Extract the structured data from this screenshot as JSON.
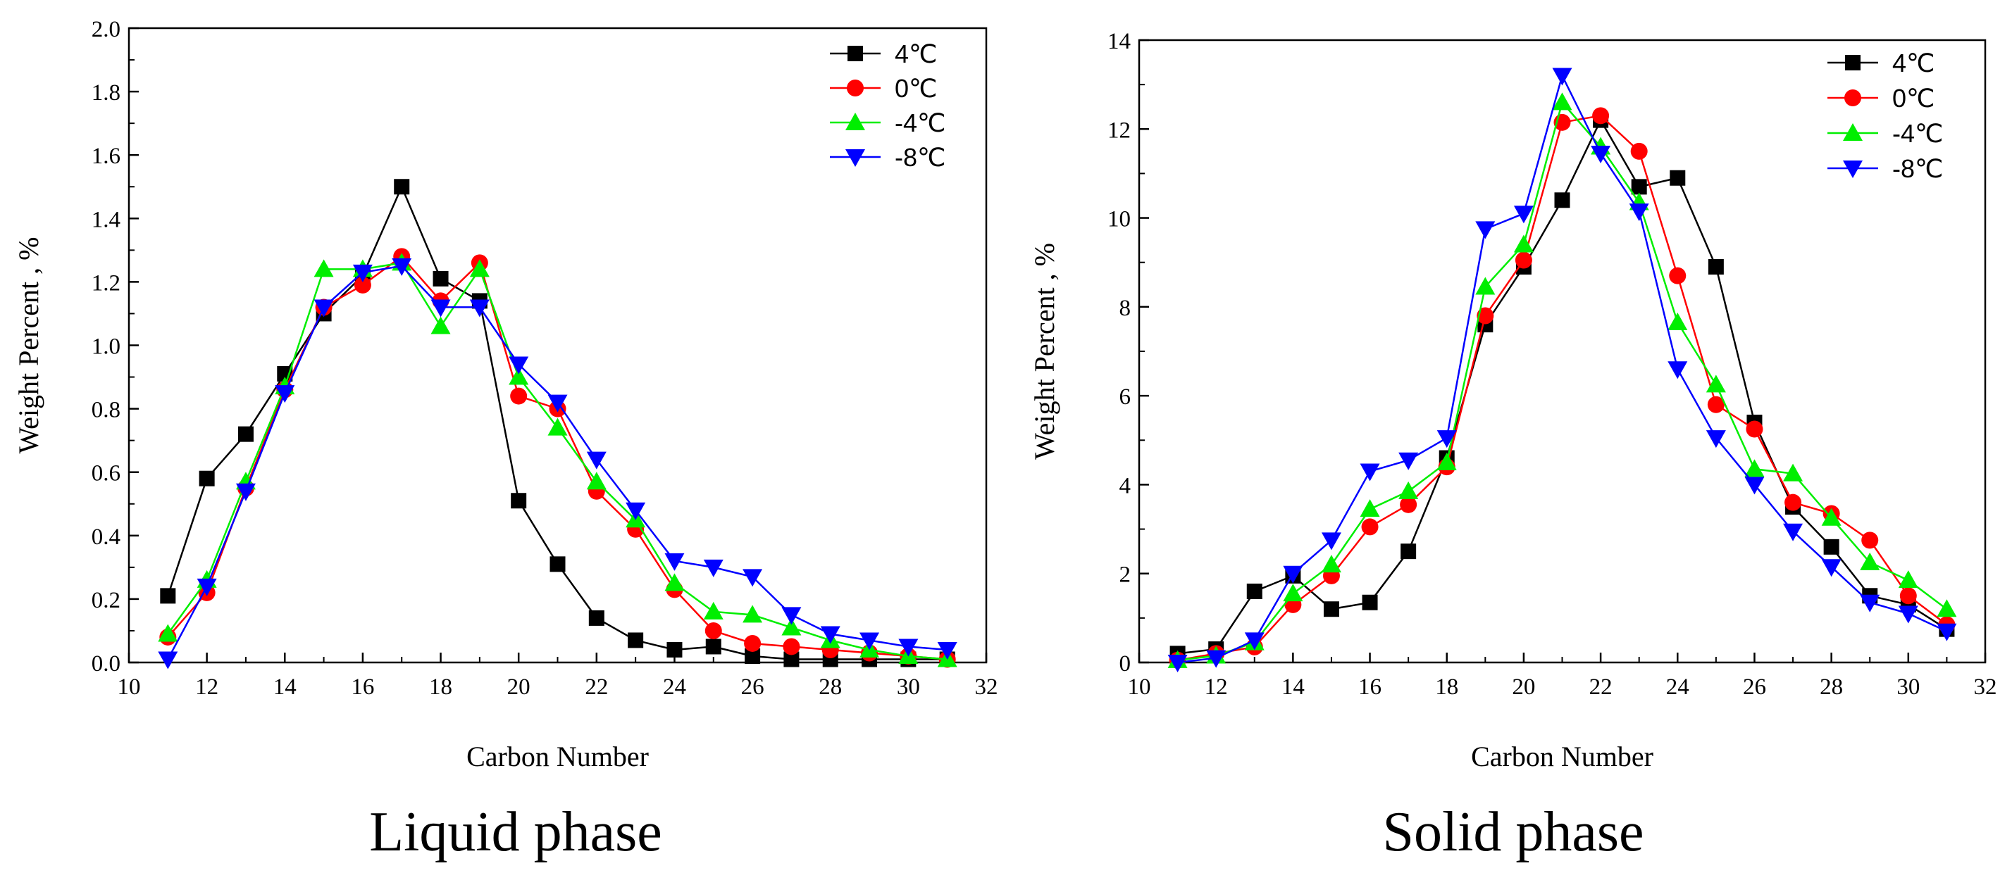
{
  "figure": {
    "panels": [
      {
        "caption": "Liquid phase"
      },
      {
        "caption": "Solid phase"
      }
    ]
  },
  "chart_data": [
    {
      "type": "line",
      "title": "Liquid phase",
      "xlabel": "Carbon Number",
      "ylabel": "Weight Percent , %",
      "xlim": [
        10,
        32
      ],
      "ylim": [
        0,
        2.0
      ],
      "xticks": [
        10,
        12,
        14,
        16,
        18,
        20,
        22,
        24,
        26,
        28,
        30,
        32
      ],
      "xtick_labels": [
        "10",
        "12",
        "14",
        "16",
        "18",
        "20",
        "22",
        "24",
        "26",
        "28",
        "30",
        "32"
      ],
      "yticks": [
        0,
        0.2,
        0.4,
        0.6,
        0.8,
        1.0,
        1.2,
        1.4,
        1.6,
        1.8,
        2.0
      ],
      "ytick_labels": [
        "0.0",
        "0.2",
        "0.4",
        "0.6",
        "0.8",
        "1.0",
        "1.2",
        "1.4",
        "1.6",
        "1.8",
        "2.0"
      ],
      "grid": false,
      "legend_position": "top-right",
      "x": [
        11,
        12,
        13,
        14,
        15,
        16,
        17,
        18,
        19,
        20,
        21,
        22,
        23,
        24,
        25,
        26,
        27,
        28,
        29,
        30,
        31
      ],
      "series": [
        {
          "name": "4℃",
          "color": "#000000",
          "marker": "square",
          "values": [
            0.21,
            0.58,
            0.72,
            0.91,
            1.1,
            1.22,
            1.5,
            1.21,
            1.14,
            0.51,
            0.31,
            0.14,
            0.07,
            0.04,
            0.05,
            0.02,
            0.01,
            0.01,
            0.01,
            0.01,
            0.01
          ]
        },
        {
          "name": "0℃",
          "color": "#ff0000",
          "marker": "circle",
          "values": [
            0.08,
            0.22,
            0.55,
            0.86,
            1.12,
            1.19,
            1.28,
            1.14,
            1.26,
            0.84,
            0.8,
            0.54,
            0.42,
            0.23,
            0.1,
            0.06,
            0.05,
            0.04,
            0.03,
            0.02,
            0.01
          ]
        },
        {
          "name": "-4℃",
          "color": "#00ee00",
          "marker": "triangle-up",
          "values": [
            0.09,
            0.26,
            0.57,
            0.87,
            1.24,
            1.24,
            1.26,
            1.06,
            1.24,
            0.9,
            0.74,
            0.57,
            0.45,
            0.25,
            0.16,
            0.15,
            0.11,
            0.07,
            0.04,
            0.02,
            0.01
          ]
        },
        {
          "name": "-8℃",
          "color": "#0000ff",
          "marker": "triangle-down",
          "values": [
            0.01,
            0.24,
            0.54,
            0.85,
            1.12,
            1.23,
            1.25,
            1.12,
            1.12,
            0.94,
            0.82,
            0.64,
            0.48,
            0.32,
            0.3,
            0.27,
            0.15,
            0.09,
            0.07,
            0.05,
            0.04
          ]
        }
      ]
    },
    {
      "type": "line",
      "title": "Solid phase",
      "xlabel": "Carbon Number",
      "ylabel": "Weight Percent , %",
      "xlim": [
        10,
        32
      ],
      "ylim": [
        0,
        14
      ],
      "xticks": [
        10,
        12,
        14,
        16,
        18,
        20,
        22,
        24,
        26,
        28,
        30,
        32
      ],
      "xtick_labels": [
        "10",
        "12",
        "14",
        "16",
        "18",
        "20",
        "22",
        "24",
        "26",
        "28",
        "30",
        "32"
      ],
      "yticks": [
        0,
        2,
        4,
        6,
        8,
        10,
        12,
        14
      ],
      "ytick_labels": [
        "0",
        "2",
        "4",
        "6",
        "8",
        "10",
        "12",
        "14"
      ],
      "grid": false,
      "legend_position": "top-right",
      "x": [
        11,
        12,
        13,
        14,
        15,
        16,
        17,
        18,
        19,
        20,
        21,
        22,
        23,
        24,
        25,
        26,
        27,
        28,
        29,
        30,
        31
      ],
      "series": [
        {
          "name": "4℃",
          "color": "#000000",
          "marker": "square",
          "values": [
            0.2,
            0.3,
            1.6,
            1.95,
            1.2,
            1.35,
            2.5,
            4.6,
            7.6,
            8.9,
            10.4,
            12.2,
            10.7,
            10.9,
            8.9,
            5.4,
            3.5,
            2.6,
            1.5,
            1.3,
            0.75
          ]
        },
        {
          "name": "0℃",
          "color": "#ff0000",
          "marker": "circle",
          "values": [
            0.05,
            0.2,
            0.35,
            1.3,
            1.95,
            3.05,
            3.55,
            4.4,
            7.8,
            9.05,
            12.15,
            12.3,
            11.5,
            8.7,
            5.8,
            5.25,
            3.6,
            3.35,
            2.75,
            1.5,
            0.85
          ]
        },
        {
          "name": "-4℃",
          "color": "#00ee00",
          "marker": "triangle-up",
          "values": [
            0.05,
            0.15,
            0.45,
            1.55,
            2.2,
            3.45,
            3.85,
            4.5,
            8.45,
            9.4,
            12.6,
            11.6,
            10.35,
            7.65,
            6.25,
            4.35,
            4.25,
            3.25,
            2.25,
            1.85,
            1.2
          ]
        },
        {
          "name": "-8℃",
          "color": "#0000ff",
          "marker": "triangle-down",
          "values": [
            0.0,
            0.1,
            0.5,
            2.0,
            2.75,
            4.3,
            4.55,
            5.05,
            9.75,
            10.1,
            13.2,
            11.45,
            10.15,
            6.6,
            5.05,
            4.0,
            2.95,
            2.15,
            1.35,
            1.1,
            0.7
          ]
        }
      ]
    }
  ]
}
